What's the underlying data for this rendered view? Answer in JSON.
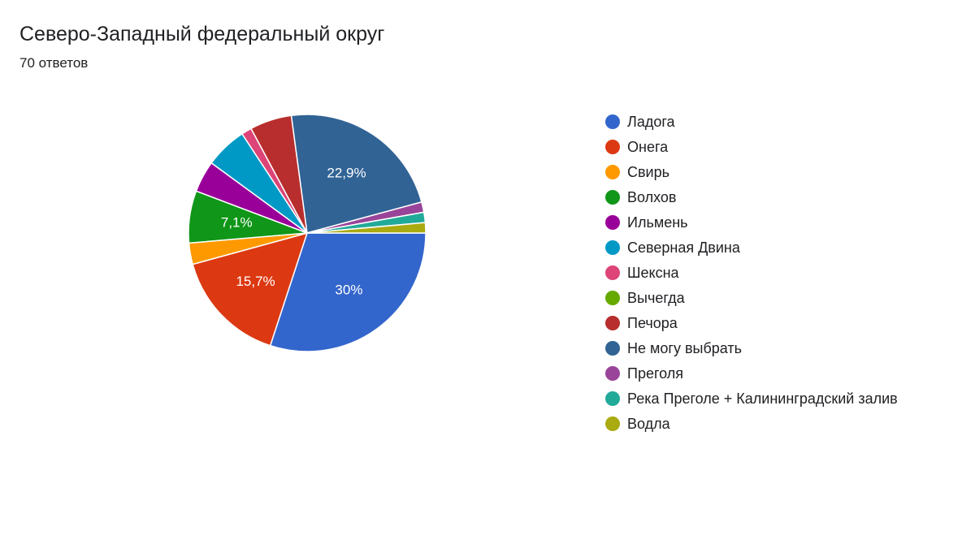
{
  "chart_data": {
    "type": "pie",
    "title": "Северо-Западный федеральный округ",
    "subtitle": "70 ответов",
    "categories": [
      "Ладога",
      "Онега",
      "Свирь",
      "Волхов",
      "Ильмень",
      "Северная Двина",
      "Шексна",
      "Вычегда",
      "Печора",
      "Не могу выбрать",
      "Преголя",
      "Река Преголе + Калининградский залив",
      "Водла"
    ],
    "values": [
      30,
      15.7,
      2.9,
      7.1,
      4.3,
      5.7,
      1.4,
      0,
      5.7,
      22.9,
      1.4,
      1.4,
      1.4
    ],
    "value_labels": [
      "30%",
      "15,7%",
      null,
      "7,1%",
      null,
      null,
      null,
      null,
      null,
      "22,9%",
      null,
      null,
      null
    ],
    "colors": [
      "#3366cc",
      "#dc3912",
      "#ff9900",
      "#109618",
      "#990099",
      "#0099c6",
      "#dd4477",
      "#66aa00",
      "#b82e2e",
      "#316395",
      "#994499",
      "#22aa99",
      "#aaaa11"
    ],
    "legend": "right"
  }
}
